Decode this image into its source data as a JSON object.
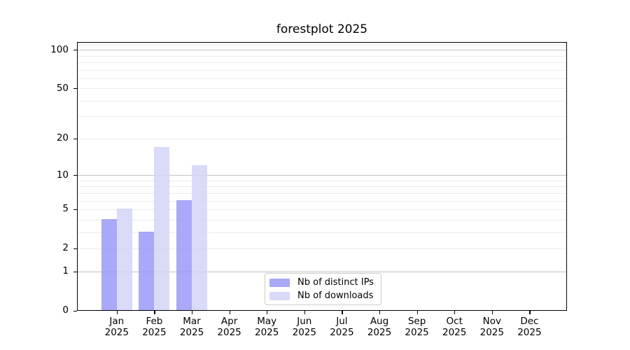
{
  "chart_data": {
    "type": "bar",
    "title": "forestplot 2025",
    "categories": [
      "Jan",
      "Feb",
      "Mar",
      "Apr",
      "May",
      "Jun",
      "Jul",
      "Aug",
      "Sep",
      "Oct",
      "Nov",
      "Dec"
    ],
    "category_year": "2025",
    "series": [
      {
        "name": "Nb of distinct IPs",
        "color": "#9a9af6",
        "values": [
          4,
          3,
          6,
          0,
          0,
          0,
          0,
          0,
          0,
          0,
          0,
          0
        ]
      },
      {
        "name": "Nb of downloads",
        "color": "#d3d3f8",
        "values": [
          5,
          17,
          12,
          0,
          0,
          0,
          0,
          0,
          0,
          0,
          0,
          0
        ]
      }
    ],
    "xlabel": "",
    "ylabel": "",
    "y_axis": {
      "scale": "log1p",
      "ylim": [
        0,
        116
      ],
      "tick_values": [
        0,
        1,
        2,
        5,
        10,
        20,
        50,
        100
      ],
      "tick_labels": [
        "0",
        "1",
        "2",
        "5",
        "10",
        "20",
        "50",
        "100"
      ],
      "major_gridline_values": [
        1,
        10,
        100
      ],
      "minor_gridline_values": [
        2,
        3,
        4,
        5,
        6,
        7,
        8,
        9,
        20,
        30,
        40,
        50,
        60,
        70,
        80,
        90,
        110
      ]
    },
    "grid": true,
    "legend_position": "lower center",
    "colors": {
      "major_gridline": "#c2c2c2",
      "minor_gridline": "#ebebeb",
      "spine": "#000000",
      "text": "#000000",
      "background": "#ffffff"
    }
  }
}
